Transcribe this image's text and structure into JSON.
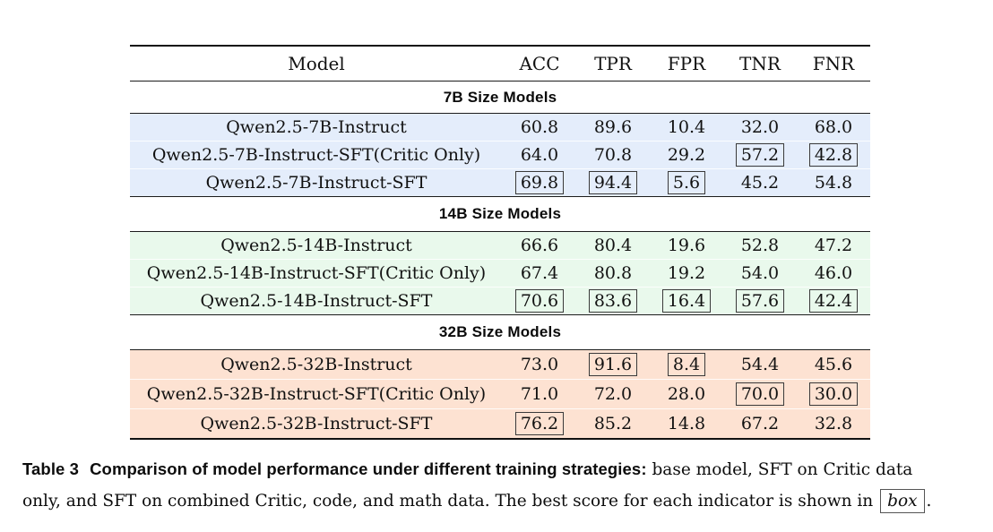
{
  "table": {
    "columns": [
      {
        "label": "Model"
      },
      {
        "label": "ACC"
      },
      {
        "label": "TPR"
      },
      {
        "label": "FPR"
      },
      {
        "label": "TNR"
      },
      {
        "label": "FNR"
      }
    ],
    "sections": [
      {
        "title": "7B Size Models",
        "row_color": "#e4edfb",
        "rows": [
          {
            "model": "Qwen2.5-7B-Instruct",
            "values": [
              "60.8",
              "89.6",
              "10.4",
              "32.0",
              "68.0"
            ],
            "boxed": [
              false,
              false,
              false,
              false,
              false
            ]
          },
          {
            "model": "Qwen2.5-7B-Instruct-SFT(Critic Only)",
            "values": [
              "64.0",
              "70.8",
              "29.2",
              "57.2",
              "42.8"
            ],
            "boxed": [
              false,
              false,
              false,
              true,
              true
            ]
          },
          {
            "model": "Qwen2.5-7B-Instruct-SFT",
            "values": [
              "69.8",
              "94.4",
              "5.6",
              "45.2",
              "54.8"
            ],
            "boxed": [
              true,
              true,
              true,
              false,
              false
            ]
          }
        ]
      },
      {
        "title": "14B Size Models",
        "row_color": "#e9f9ec",
        "rows": [
          {
            "model": "Qwen2.5-14B-Instruct",
            "values": [
              "66.6",
              "80.4",
              "19.6",
              "52.8",
              "47.2"
            ],
            "boxed": [
              false,
              false,
              false,
              false,
              false
            ]
          },
          {
            "model": "Qwen2.5-14B-Instruct-SFT(Critic Only)",
            "values": [
              "67.4",
              "80.8",
              "19.2",
              "54.0",
              "46.0"
            ],
            "boxed": [
              false,
              false,
              false,
              false,
              false
            ]
          },
          {
            "model": "Qwen2.5-14B-Instruct-SFT",
            "values": [
              "70.6",
              "83.6",
              "16.4",
              "57.6",
              "42.4"
            ],
            "boxed": [
              true,
              true,
              true,
              true,
              true
            ]
          }
        ]
      },
      {
        "title": "32B Size Models",
        "row_color": "#fde2d2",
        "rows": [
          {
            "model": "Qwen2.5-32B-Instruct",
            "values": [
              "73.0",
              "91.6",
              "8.4",
              "54.4",
              "45.6"
            ],
            "boxed": [
              false,
              true,
              true,
              false,
              false
            ]
          },
          {
            "model": "Qwen2.5-32B-Instruct-SFT(Critic Only)",
            "values": [
              "71.0",
              "72.0",
              "28.0",
              "70.0",
              "30.0"
            ],
            "boxed": [
              false,
              false,
              false,
              true,
              true
            ]
          },
          {
            "model": "Qwen2.5-32B-Instruct-SFT",
            "values": [
              "76.2",
              "85.2",
              "14.8",
              "67.2",
              "32.8"
            ],
            "boxed": [
              true,
              false,
              false,
              false,
              false
            ]
          }
        ]
      }
    ]
  },
  "caption": {
    "label": "Table 3",
    "bold_text": "Comparison of model performance under different training strategies:",
    "line1_rest": " base model, SFT on Critic data",
    "line2_text": "only, and SFT on combined Critic, code, and math data. The best score for each indicator is shown in ",
    "box_word": "box",
    "after_box": "."
  }
}
